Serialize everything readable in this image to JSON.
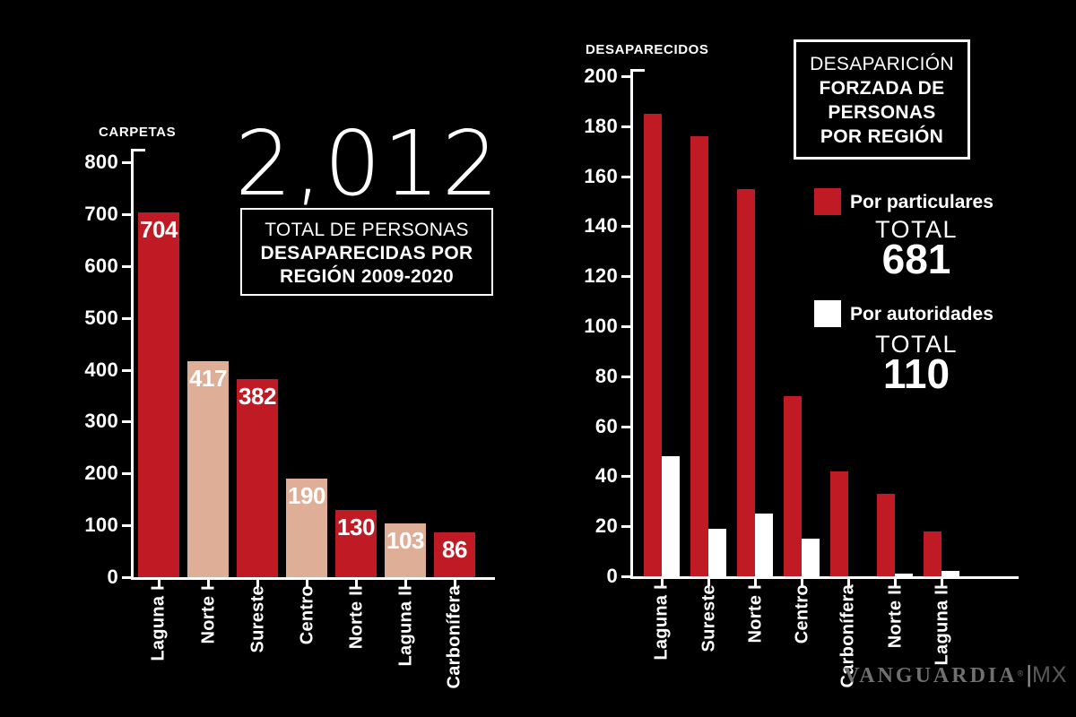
{
  "page": {
    "background": "#000000"
  },
  "colors": {
    "red": "#c01b24",
    "tan": "#dfae96",
    "white": "#ffffff",
    "text": "#ffffff",
    "logo_brand": "#707070",
    "logo_pipe": "#9a9a9a",
    "logo_mx": "#595959"
  },
  "chart_data": [
    {
      "type": "bar",
      "ylabel": "CARPETAS",
      "total_label": "2,012",
      "total": 2012,
      "title": "TOTAL DE PERSONAS DESAPARECIDAS POR REGIÓN 2009-2020",
      "title_lines": [
        "TOTAL DE PERSONAS",
        "DESAPARECIDAS POR",
        "REGIÓN 2009-2020"
      ],
      "categories": [
        "Laguna I",
        "Norte I",
        "Sureste",
        "Centro",
        "Norte II",
        "Laguna II",
        "Carbonífera"
      ],
      "values": [
        704,
        417,
        382,
        190,
        130,
        103,
        86
      ],
      "bar_colors": [
        "red",
        "tan",
        "red",
        "tan",
        "red",
        "tan",
        "red"
      ],
      "value_labels": true,
      "ylim": [
        0,
        800
      ],
      "ytick_step": 100,
      "grid": false
    },
    {
      "type": "bar",
      "ylabel": "DESAPARECIDOS",
      "title": "DESAPARICIÓN FORZADA DE PERSONAS POR REGIÓN",
      "title_lines": [
        "DESAPARICIÓN",
        "FORZADA DE",
        "PERSONAS",
        "POR REGIÓN"
      ],
      "categories": [
        "Laguna I",
        "Sureste",
        "Norte I",
        "Centro",
        "Carbonífera",
        "Norte II",
        "Laguna II"
      ],
      "series": [
        {
          "name": "Por particulares",
          "color": "red",
          "total": 681,
          "values": [
            185,
            176,
            155,
            72,
            42,
            33,
            18
          ]
        },
        {
          "name": "Por autoridades",
          "color": "white",
          "total": 110,
          "values": [
            48,
            19,
            25,
            15,
            0,
            1,
            2
          ]
        }
      ],
      "legend_total_word": "TOTAL",
      "legend_position": "right",
      "ylim": [
        0,
        200
      ],
      "ytick_step": 20,
      "grid": false
    }
  ],
  "logo": {
    "brand": "VANGUARDIA",
    "registered": "®",
    "separator": "|",
    "suffix": "MX"
  }
}
